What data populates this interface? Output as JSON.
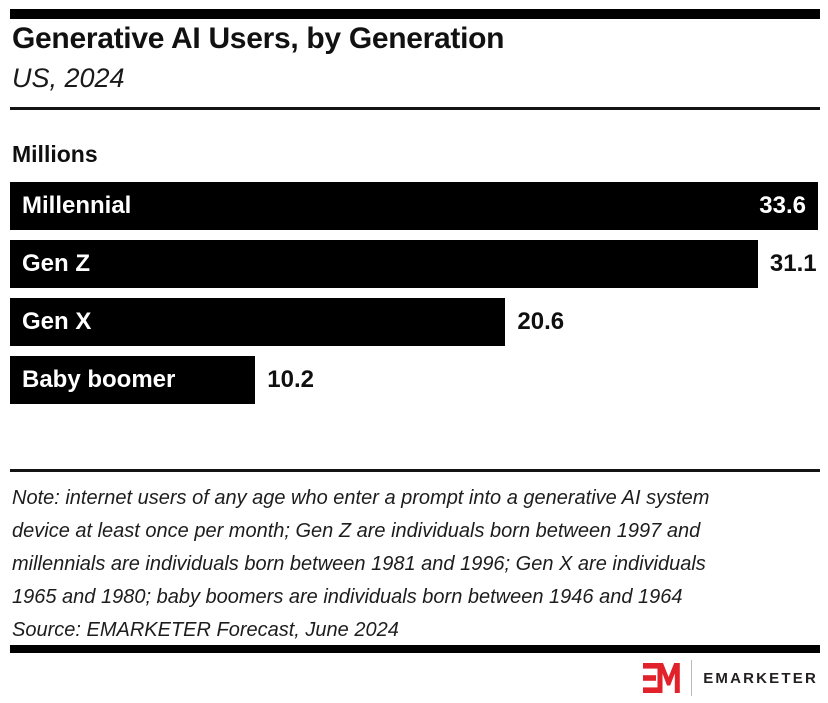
{
  "colors": {
    "accent_red": "#E2222B",
    "bar_black": "#000000",
    "text_dark": "#111111"
  },
  "header": {
    "title": "Generative AI Users, by Generation",
    "subtitle": "US, 2024"
  },
  "chart_data": {
    "type": "bar",
    "orientation": "horizontal",
    "title": "Generative AI Users, by Generation",
    "subtitle": "US, 2024",
    "unit_label": "Millions",
    "categories": [
      "Millennial",
      "Gen Z",
      "Gen X",
      "Baby boomer"
    ],
    "values": [
      33.6,
      31.1,
      20.6,
      10.2
    ],
    "value_labels": [
      "33.6",
      "31.1",
      "20.6",
      "10.2"
    ],
    "xlim": [
      0,
      33.6
    ],
    "grid": false,
    "legend": false,
    "bar_color": "#000000",
    "max_value_label_inside_bar": true
  },
  "notes": {
    "lines": [
      "Note: internet users of any age who enter a prompt into a generative AI system",
      "device at least once per month; Gen Z are individuals born between 1997 and",
      "millennials are individuals born between 1981 and 1996; Gen X are individuals",
      "1965 and 1980; baby boomers are individuals born between 1946 and 1964"
    ],
    "source": "Source: EMARKETER Forecast, June 2024"
  },
  "footer": {
    "brand_text": "EMARKETER",
    "logo_monogram": "EM"
  }
}
